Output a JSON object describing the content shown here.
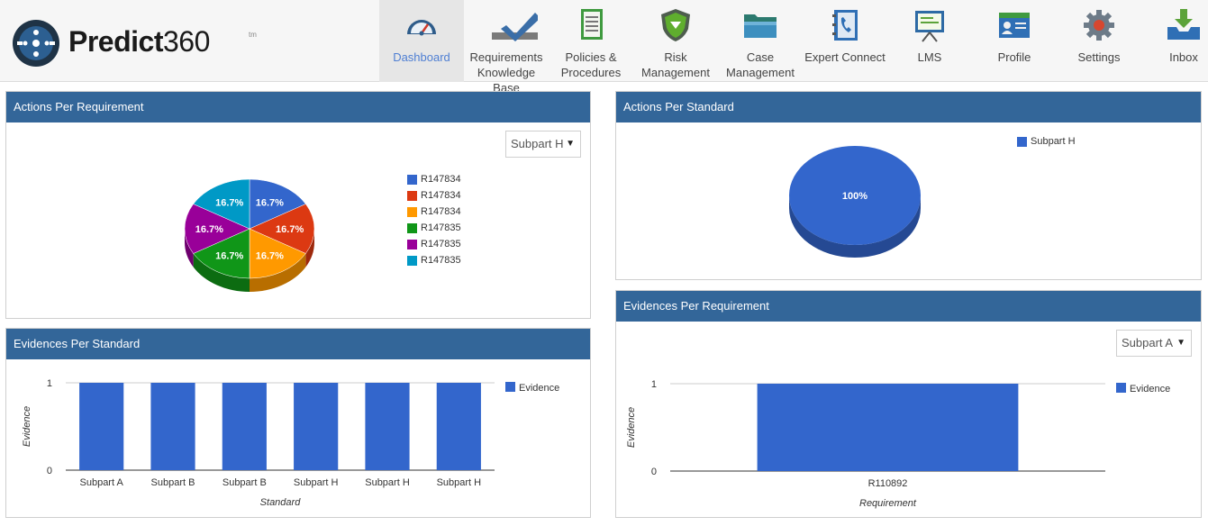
{
  "app": {
    "logo_text": "Predict",
    "logo_num": "360",
    "logo_tm": "tm"
  },
  "nav": [
    {
      "label": "Dashboard",
      "icon": "dashboard-gauge-icon",
      "active": true
    },
    {
      "label": "Requirements Knowledge Base",
      "icon": "checkmark-icon",
      "active": false
    },
    {
      "label": "Policies & Procedures",
      "icon": "document-list-icon",
      "active": false
    },
    {
      "label": "Risk Management",
      "icon": "shield-icon",
      "active": false
    },
    {
      "label": "Case Management",
      "icon": "folder-icon",
      "active": false
    },
    {
      "label": "Expert Connect",
      "icon": "phone-book-icon",
      "active": false
    },
    {
      "label": "LMS",
      "icon": "presentation-board-icon",
      "active": false
    },
    {
      "label": "Profile",
      "icon": "id-card-icon",
      "active": false
    },
    {
      "label": "Settings",
      "icon": "gear-icon",
      "active": false
    },
    {
      "label": "Inbox",
      "icon": "inbox-tray-icon",
      "active": false
    }
  ],
  "panels": {
    "actions_per_requirement": {
      "title": "Actions Per Requirement",
      "select_value": "Subpart H"
    },
    "actions_per_standard": {
      "title": "Actions Per Standard"
    },
    "evidences_per_standard": {
      "title": "Evidences Per Standard"
    },
    "evidences_per_requirement": {
      "title": "Evidences Per Requirement",
      "select_value": "Subpart A"
    }
  },
  "chart_data": [
    {
      "type": "pie",
      "title": "Actions Per Requirement",
      "categories": [
        "R147834",
        "R147834",
        "R147834",
        "R147835",
        "R147835",
        "R147835"
      ],
      "values": [
        16.7,
        16.7,
        16.7,
        16.7,
        16.7,
        16.7
      ],
      "labels": [
        "16.7%",
        "16.7%",
        "16.7%",
        "16.7%",
        "16.7%",
        "16.7%"
      ],
      "colors": [
        "#3366cc",
        "#dc3912",
        "#ff9900",
        "#109618",
        "#990099",
        "#0099c6"
      ],
      "legend": "right",
      "three_d": true
    },
    {
      "type": "pie",
      "title": "Actions Per Standard",
      "categories": [
        "Subpart H"
      ],
      "values": [
        100
      ],
      "labels": [
        "100%"
      ],
      "colors": [
        "#3366cc"
      ],
      "legend": "top-right",
      "three_d": true
    },
    {
      "type": "bar",
      "title": "Evidences Per Standard",
      "categories": [
        "Subpart A",
        "Subpart B",
        "Subpart B",
        "Subpart H",
        "Subpart H",
        "Subpart H"
      ],
      "series": [
        {
          "name": "Evidence",
          "values": [
            1,
            1,
            1,
            1,
            1,
            1
          ]
        }
      ],
      "xlabel": "Standard",
      "ylabel": "Evidence",
      "ylim": [
        0,
        1
      ],
      "yticks": [
        "0",
        "1"
      ],
      "color": "#3366cc",
      "legend": "top-right"
    },
    {
      "type": "bar",
      "title": "Evidences Per Requirement",
      "categories": [
        "R110892"
      ],
      "series": [
        {
          "name": "Evidence",
          "values": [
            1
          ]
        }
      ],
      "xlabel": "Requirement",
      "ylabel": "Evidence",
      "ylim": [
        0,
        1
      ],
      "yticks": [
        "0",
        "1"
      ],
      "color": "#3366cc",
      "legend": "top-right"
    }
  ]
}
